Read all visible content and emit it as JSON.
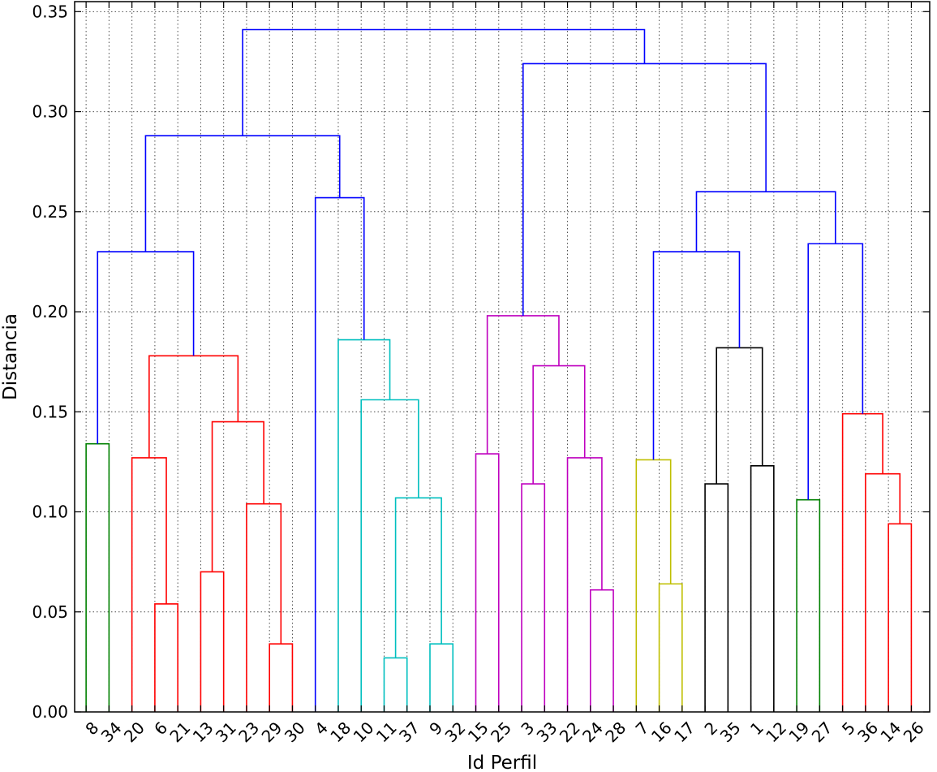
{
  "chart_data": {
    "type": "dendrogram",
    "xlabel": "Id Perfil",
    "ylabel": "Distancia",
    "ylim": [
      0,
      0.355
    ],
    "yticks": [
      0.0,
      0.05,
      0.1,
      0.15,
      0.2,
      0.25,
      0.3,
      0.35
    ],
    "ytick_labels": [
      "0.00",
      "0.05",
      "0.10",
      "0.15",
      "0.20",
      "0.25",
      "0.30",
      "0.35"
    ],
    "grid": true,
    "leaves": [
      "8",
      "34",
      "20",
      "6",
      "21",
      "13",
      "31",
      "23",
      "29",
      "30",
      "4",
      "18",
      "10",
      "11",
      "37",
      "9",
      "32",
      "15",
      "25",
      "3",
      "33",
      "22",
      "24",
      "28",
      "7",
      "16",
      "17",
      "2",
      "35",
      "1",
      "12",
      "19",
      "27",
      "5",
      "36",
      "14",
      "26"
    ],
    "links": [
      {
        "left": "L0",
        "right": "L1",
        "height": 0.134,
        "color": "#008000"
      },
      {
        "left": "L3",
        "right": "L4",
        "height": 0.054,
        "color": "#ff0000"
      },
      {
        "left": "L2",
        "right": "N1",
        "height": 0.127,
        "color": "#ff0000"
      },
      {
        "left": "L5",
        "right": "L6",
        "height": 0.07,
        "color": "#ff0000"
      },
      {
        "left": "L8",
        "right": "L9",
        "height": 0.034,
        "color": "#ff0000"
      },
      {
        "left": "L7",
        "right": "N4",
        "height": 0.104,
        "color": "#ff0000"
      },
      {
        "left": "N3",
        "right": "N5",
        "height": 0.145,
        "color": "#ff0000"
      },
      {
        "left": "N2",
        "right": "N6",
        "height": 0.178,
        "color": "#ff0000"
      },
      {
        "left": "N0",
        "right": "N7",
        "height": 0.23,
        "color": "#0000ff"
      },
      {
        "left": "L13",
        "right": "L14",
        "height": 0.027,
        "color": "#00bfbf"
      },
      {
        "left": "L15",
        "right": "L16",
        "height": 0.034,
        "color": "#00bfbf"
      },
      {
        "left": "N9",
        "right": "N10",
        "height": 0.107,
        "color": "#00bfbf"
      },
      {
        "left": "L12",
        "right": "N11",
        "height": 0.156,
        "color": "#00bfbf"
      },
      {
        "left": "L11",
        "right": "N12",
        "height": 0.186,
        "color": "#00bfbf"
      },
      {
        "left": "L10",
        "right": "N13",
        "height": 0.257,
        "color": "#0000ff"
      },
      {
        "left": "N8",
        "right": "N14",
        "height": 0.288,
        "color": "#0000ff"
      },
      {
        "left": "L17",
        "right": "L18",
        "height": 0.129,
        "color": "#bf00bf"
      },
      {
        "left": "L19",
        "right": "L20",
        "height": 0.114,
        "color": "#bf00bf"
      },
      {
        "left": "L22",
        "right": "L23",
        "height": 0.061,
        "color": "#bf00bf"
      },
      {
        "left": "L21",
        "right": "N18",
        "height": 0.127,
        "color": "#bf00bf"
      },
      {
        "left": "N17",
        "right": "N19",
        "height": 0.173,
        "color": "#bf00bf"
      },
      {
        "left": "N16",
        "right": "N20",
        "height": 0.198,
        "color": "#bf00bf"
      },
      {
        "left": "L25",
        "right": "L26",
        "height": 0.064,
        "color": "#bfbf00"
      },
      {
        "left": "L24",
        "right": "N22",
        "height": 0.126,
        "color": "#bfbf00"
      },
      {
        "left": "L27",
        "right": "L28",
        "height": 0.114,
        "color": "#000000"
      },
      {
        "left": "L29",
        "right": "L30",
        "height": 0.123,
        "color": "#000000"
      },
      {
        "left": "N24",
        "right": "N25",
        "height": 0.182,
        "color": "#000000"
      },
      {
        "left": "N23",
        "right": "N26",
        "height": 0.23,
        "color": "#0000ff"
      },
      {
        "left": "L31",
        "right": "L32",
        "height": 0.106,
        "color": "#008000"
      },
      {
        "left": "L35",
        "right": "L36",
        "height": 0.094,
        "color": "#ff0000"
      },
      {
        "left": "L34",
        "right": "N29",
        "height": 0.119,
        "color": "#ff0000"
      },
      {
        "left": "L33",
        "right": "N30",
        "height": 0.149,
        "color": "#ff0000"
      },
      {
        "left": "N28",
        "right": "N31",
        "height": 0.234,
        "color": "#0000ff"
      },
      {
        "left": "N27",
        "right": "N32",
        "height": 0.26,
        "color": "#0000ff"
      },
      {
        "left": "N21",
        "right": "N33",
        "height": 0.324,
        "color": "#0000ff"
      },
      {
        "left": "N15",
        "right": "N34",
        "height": 0.341,
        "color": "#0000ff"
      }
    ]
  }
}
